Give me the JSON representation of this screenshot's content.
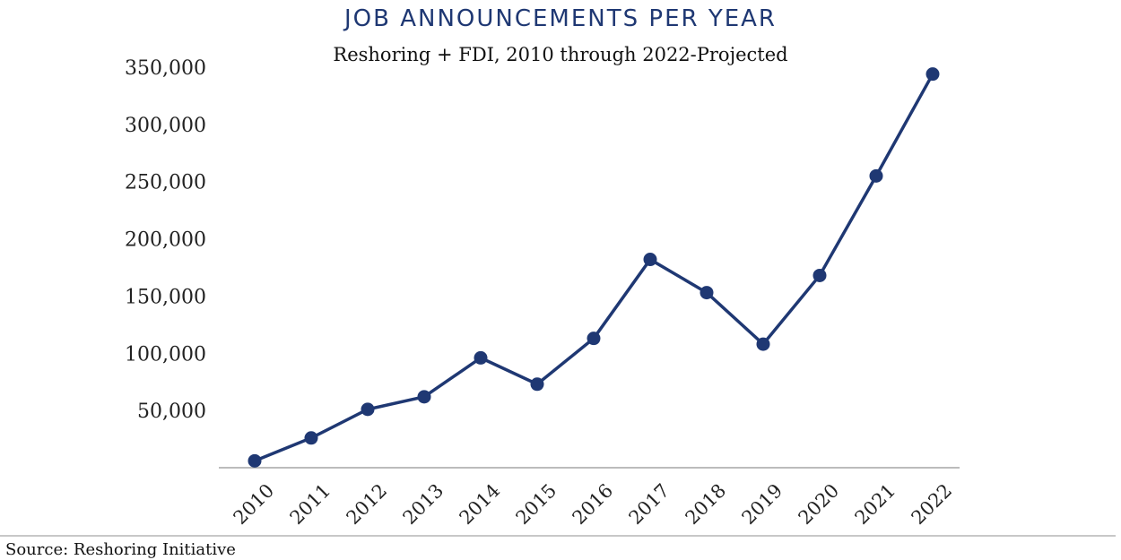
{
  "chart_data": {
    "type": "line",
    "title": "JOB ANNOUNCEMENTS PER YEAR",
    "subtitle": "Reshoring + FDI, 2010 through 2022-Projected",
    "xlabel": "",
    "ylabel": "",
    "categories": [
      "2010",
      "2011",
      "2012",
      "2013",
      "2014",
      "2015",
      "2016",
      "2017",
      "2018",
      "2019",
      "2020",
      "2021",
      "2022"
    ],
    "series": [
      {
        "values": [
          6000,
          26000,
          51000,
          62000,
          96000,
          73000,
          113000,
          182000,
          153000,
          108000,
          168000,
          255000,
          344000
        ]
      }
    ],
    "y_ticks": [
      50000,
      100000,
      150000,
      200000,
      250000,
      300000,
      350000
    ],
    "y_tick_labels": [
      "50,000",
      "100,000",
      "150,000",
      "200,000",
      "250,000",
      "300,000",
      "350,000"
    ],
    "ylim": [
      0,
      350000
    ],
    "grid": false,
    "legend": "none",
    "source": "Source: Reshoring Initiative",
    "colors": {
      "series": "#1f3873",
      "title": "#1f3873",
      "axis": "#a6a6a6"
    }
  }
}
